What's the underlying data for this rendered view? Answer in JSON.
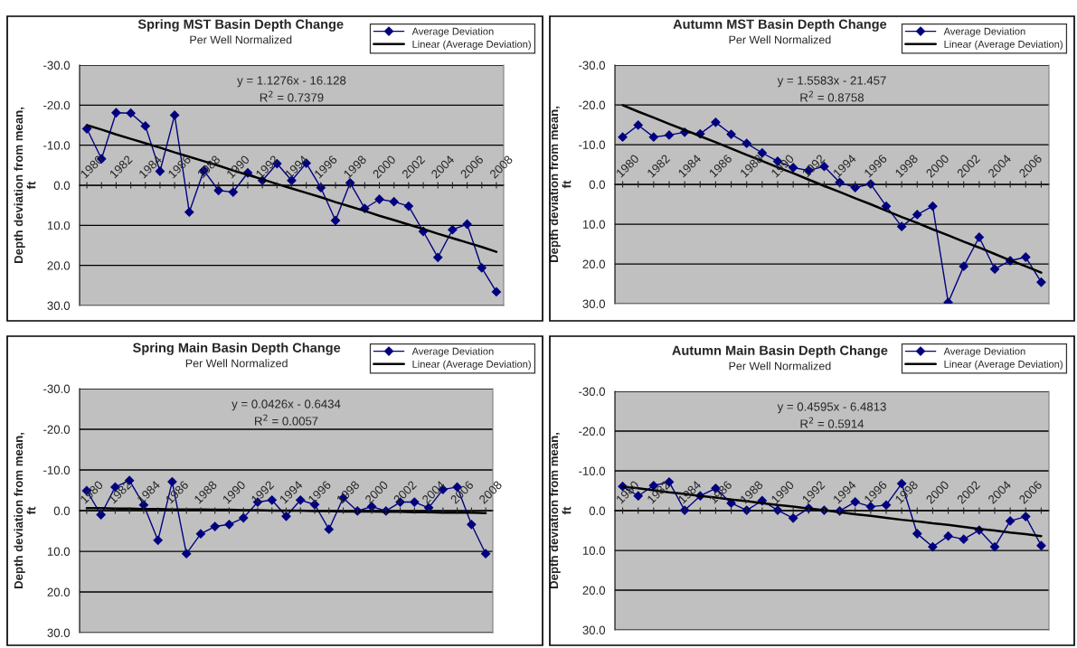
{
  "chart_data": [
    {
      "type": "line",
      "title": "Spring MST Basin Depth Change",
      "subtitle": "Per Well Normalized",
      "ylabel": "Depth deviation from mean,\nft",
      "categories": [
        "1980",
        null,
        "1982",
        null,
        "1984",
        null,
        "1986",
        null,
        "1988",
        null,
        "1990",
        null,
        "1992",
        null,
        "1994",
        null,
        "1996",
        null,
        "1998",
        null,
        "2000",
        null,
        "2002",
        null,
        "2004",
        null,
        "2006",
        null,
        "2008"
      ],
      "series": [
        {
          "name": "Average Deviation",
          "color": "#000080",
          "marker": "diamond",
          "values": [
            -14.1,
            -6.6,
            -18.1,
            -18.0,
            -14.8,
            -3.5,
            -17.5,
            6.7,
            -3.7,
            1.3,
            1.7,
            -3.1,
            -1.2,
            -5.4,
            -1.2,
            -5.5,
            0.6,
            8.8,
            -0.6,
            5.8,
            3.5,
            4.1,
            5.2,
            11.5,
            18.0,
            11.1,
            9.7,
            20.6,
            26.6
          ]
        },
        {
          "name": "Linear (Average Deviation)",
          "color": "#000000",
          "marker": "none",
          "values": [
            -15.0,
            -13.9,
            -12.7,
            -11.6,
            -10.5,
            -9.4,
            -8.2,
            -7.1,
            -6.0,
            -4.9,
            -3.7,
            -2.6,
            -1.5,
            -0.3,
            0.8,
            1.9,
            3.0,
            4.2,
            5.3,
            6.4,
            7.6,
            8.7,
            9.8,
            10.9,
            12.1,
            13.2,
            14.3,
            15.4,
            16.6
          ]
        }
      ],
      "ylim": [
        30,
        -30
      ],
      "yticks": [
        {
          "value": -30,
          "label": "-30.0"
        },
        {
          "value": -20,
          "label": "-20.0"
        },
        {
          "value": -10,
          "label": "-10.0"
        },
        {
          "value": 0,
          "label": "0.0"
        },
        {
          "value": 10,
          "label": "10.0"
        },
        {
          "value": 20,
          "label": "20.0"
        },
        {
          "value": 30,
          "label": "30.0"
        }
      ],
      "grid": "y",
      "legend": "top right",
      "line_style": "solid",
      "annotations": [
        "y = 1.1276x - 16.128",
        "R$^{2}$ = 0.7379"
      ]
    },
    {
      "type": "line",
      "title": "Autumn MST Basin Depth Change",
      "subtitle": "Per Well Normalized",
      "ylabel": "Depth deviation from mean,\nft",
      "categories": [
        "1980",
        null,
        "1982",
        null,
        "1984",
        null,
        "1986",
        null,
        "1988",
        null,
        "1990",
        null,
        "1992",
        null,
        "1994",
        null,
        "1996",
        null,
        "1998",
        null,
        "2000",
        null,
        "2002",
        null,
        "2004",
        null,
        "2006",
        null
      ],
      "series": [
        {
          "name": "Average Deviation",
          "color": "#000080",
          "marker": "diamond",
          "values": [
            -11.9,
            -14.9,
            -11.9,
            -12.4,
            -13.1,
            -12.7,
            -15.6,
            -12.6,
            -10.3,
            -7.9,
            -5.8,
            -4.2,
            -3.5,
            -4.5,
            -0.5,
            0.8,
            -0.1,
            5.5,
            10.6,
            7.6,
            5.5,
            29.7,
            20.6,
            13.3,
            21.3,
            19.2,
            18.3,
            24.6
          ]
        },
        {
          "name": "Linear (Average Deviation)",
          "color": "#000000",
          "marker": "none",
          "values": [
            -19.9,
            -18.3,
            -16.8,
            -15.2,
            -13.7,
            -12.1,
            -10.6,
            -9.0,
            -7.4,
            -5.9,
            -4.3,
            -2.8,
            -1.2,
            0.4,
            1.9,
            3.5,
            5.0,
            6.6,
            8.2,
            9.7,
            11.3,
            12.8,
            14.4,
            15.9,
            17.5,
            19.1,
            20.6,
            22.2
          ]
        }
      ],
      "ylim": [
        30,
        -30
      ],
      "yticks": [
        {
          "value": -30,
          "label": "-30.0"
        },
        {
          "value": -20,
          "label": "-20.0"
        },
        {
          "value": -10,
          "label": "-10.0"
        },
        {
          "value": 0,
          "label": "0.0"
        },
        {
          "value": 10,
          "label": "10.0"
        },
        {
          "value": 20,
          "label": "20.0"
        },
        {
          "value": 30,
          "label": "30.0"
        }
      ],
      "grid": "y",
      "legend": "top right",
      "line_style": "solid",
      "annotations": [
        "y = 1.5583x - 21.457",
        "R$^{2}$ = 0.8758"
      ]
    },
    {
      "type": "line",
      "title": "Spring Main Basin Depth Change",
      "subtitle": "Per Well Normalized",
      "ylabel": "Depth deviation from mean,\nft",
      "categories": [
        "1980",
        null,
        "1982",
        null,
        "1984",
        null,
        "1986",
        null,
        "1988",
        null,
        "1990",
        null,
        "1992",
        null,
        "1994",
        null,
        "1996",
        null,
        "1998",
        null,
        "2000",
        null,
        "2002",
        null,
        "2004",
        null,
        "2006",
        null,
        "2008"
      ],
      "series": [
        {
          "name": "Average Deviation",
          "color": "#000080",
          "marker": "diamond",
          "values": [
            -4.9,
            1.0,
            -5.8,
            -7.4,
            -1.4,
            7.3,
            -7.1,
            10.6,
            5.7,
            3.9,
            3.4,
            1.8,
            -2.1,
            -2.6,
            1.4,
            -2.6,
            -1.5,
            4.6,
            -3.1,
            0.1,
            -1.0,
            0.1,
            -2.1,
            -2.1,
            -0.7,
            -5.2,
            -5.8,
            3.4,
            10.6
          ]
        },
        {
          "name": "Linear (Average Deviation)",
          "color": "#000000",
          "marker": "none",
          "values": [
            -0.6,
            -0.6,
            -0.5,
            -0.5,
            -0.4,
            -0.4,
            -0.3,
            -0.3,
            -0.3,
            -0.2,
            -0.2,
            -0.1,
            -0.1,
            0.0,
            0.0,
            0.0,
            0.1,
            0.1,
            0.2,
            0.2,
            0.2,
            0.3,
            0.3,
            0.4,
            0.4,
            0.5,
            0.5,
            0.5,
            0.6
          ]
        }
      ],
      "ylim": [
        30,
        -30
      ],
      "yticks": [
        {
          "value": -30,
          "label": "-30.0"
        },
        {
          "value": -20,
          "label": "-20.0"
        },
        {
          "value": -10,
          "label": "-10.0"
        },
        {
          "value": 0,
          "label": "0.0"
        },
        {
          "value": 10,
          "label": "10.0"
        },
        {
          "value": 20,
          "label": "20.0"
        },
        {
          "value": 30,
          "label": "30.0"
        }
      ],
      "grid": "y",
      "legend": "top right",
      "line_style": "solid",
      "annotations": [
        "y = 0.0426x - 0.6434",
        "R$^{2}$ = 0.0057"
      ]
    },
    {
      "type": "line",
      "title": "Autumn Main Basin Depth Change",
      "subtitle": "Per Well Normalized",
      "ylabel": "Depth deviation from mean,\nft",
      "categories": [
        "1980",
        null,
        "1982",
        null,
        "1984",
        null,
        "1986",
        null,
        "1988",
        null,
        "1990",
        null,
        "1992",
        null,
        "1994",
        null,
        "1996",
        null,
        "1998",
        null,
        "2000",
        null,
        "2002",
        null,
        "2004",
        null,
        "2006",
        null
      ],
      "series": [
        {
          "name": "Average Deviation",
          "color": "#000080",
          "marker": "diamond",
          "values": [
            -6.1,
            -3.7,
            -6.3,
            -7.2,
            -0.1,
            -3.7,
            -5.6,
            -1.9,
            -0.1,
            -2.5,
            -0.1,
            1.9,
            -0.6,
            -0.1,
            0.1,
            -2.2,
            -1.0,
            -1.4,
            -6.8,
            5.8,
            9.1,
            6.4,
            7.2,
            4.9,
            9.1,
            2.6,
            1.5,
            8.8
          ]
        },
        {
          "name": "Linear (Average Deviation)",
          "color": "#000000",
          "marker": "none",
          "values": [
            -6.0,
            -5.6,
            -5.1,
            -4.6,
            -4.2,
            -3.7,
            -3.3,
            -2.8,
            -2.4,
            -1.9,
            -1.4,
            -1.0,
            -0.5,
            -0.1,
            0.4,
            0.9,
            1.3,
            1.8,
            2.3,
            2.7,
            3.2,
            3.6,
            4.1,
            4.6,
            5.0,
            5.5,
            5.9,
            6.4
          ]
        }
      ],
      "ylim": [
        30,
        -30
      ],
      "yticks": [
        {
          "value": -30,
          "label": "-30.0"
        },
        {
          "value": -20,
          "label": "-20.0"
        },
        {
          "value": -10,
          "label": "-10.0"
        },
        {
          "value": 0,
          "label": "0.0"
        },
        {
          "value": 10,
          "label": "10.0"
        },
        {
          "value": 20,
          "label": "20.0"
        },
        {
          "value": 30,
          "label": "30.0"
        }
      ],
      "grid": "y",
      "legend": "top right",
      "line_style": "solid",
      "annotations": [
        "y = 0.4595x - 6.4813",
        "R$^{2}$ = 0.5914"
      ]
    }
  ]
}
